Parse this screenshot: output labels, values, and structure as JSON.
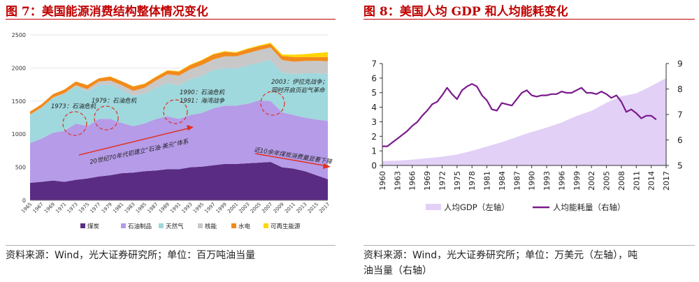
{
  "left": {
    "title": "图 7：美国能源消费结构整体情况变化",
    "source": "资料来源：Wind，光大证券研究所；单位：百万吨油当量",
    "chart_data": {
      "type": "area",
      "stacked": true,
      "title": "",
      "xlabel": "",
      "ylabel": "",
      "xlim": [
        1965,
        2017
      ],
      "ylim": [
        0,
        2500
      ],
      "x_ticks": [
        "1965",
        "1967",
        "1969",
        "1971",
        "1973",
        "1975",
        "1977",
        "1979",
        "1981",
        "1983",
        "1985",
        "1987",
        "1989",
        "1991",
        "1993",
        "1995",
        "1997",
        "1999",
        "2001",
        "2003",
        "2005",
        "2007",
        "2009",
        "2011",
        "2013",
        "2015",
        "2017"
      ],
      "y_ticks": [
        "0",
        "500",
        "1000",
        "1500",
        "2000",
        "2500"
      ],
      "x": [
        1965,
        1967,
        1969,
        1971,
        1973,
        1975,
        1977,
        1979,
        1981,
        1983,
        1985,
        1987,
        1989,
        1991,
        1993,
        1995,
        1997,
        1999,
        2001,
        2003,
        2005,
        2007,
        2009,
        2011,
        2013,
        2015,
        2017
      ],
      "legend_position": "bottom",
      "series": [
        {
          "name": "煤炭",
          "color": "#5b2c83",
          "values": [
            265,
            280,
            300,
            280,
            310,
            330,
            360,
            380,
            410,
            420,
            440,
            450,
            470,
            470,
            500,
            510,
            530,
            550,
            550,
            560,
            570,
            580,
            500,
            480,
            440,
            380,
            320
          ]
        },
        {
          "name": "石油制品",
          "color": "#b59be8",
          "values": [
            600,
            650,
            720,
            770,
            850,
            790,
            870,
            850,
            760,
            700,
            720,
            780,
            800,
            760,
            790,
            810,
            860,
            880,
            880,
            900,
            940,
            920,
            830,
            810,
            810,
            840,
            880
          ]
        },
        {
          "name": "天然气",
          "color": "#9fd8dd",
          "values": [
            430,
            470,
            530,
            560,
            560,
            520,
            510,
            520,
            500,
            460,
            450,
            470,
            500,
            510,
            540,
            560,
            580,
            570,
            560,
            580,
            570,
            620,
            600,
            620,
            670,
            700,
            710
          ]
        },
        {
          "name": "核能",
          "color": "#c8c8c8",
          "values": [
            2,
            3,
            4,
            10,
            20,
            40,
            55,
            60,
            70,
            75,
            90,
            110,
            135,
            145,
            150,
            165,
            160,
            175,
            185,
            185,
            190,
            190,
            190,
            185,
            185,
            190,
            190
          ]
        },
        {
          "name": "水电",
          "color": "#f28a1c",
          "values": [
            45,
            48,
            50,
            55,
            55,
            60,
            48,
            60,
            58,
            65,
            60,
            55,
            55,
            60,
            65,
            70,
            75,
            70,
            55,
            60,
            60,
            55,
            60,
            70,
            60,
            55,
            65
          ]
        },
        {
          "name": "可再生能源",
          "color": "#ffd500",
          "values": [
            0,
            0,
            0,
            1,
            1,
            2,
            2,
            3,
            3,
            4,
            5,
            6,
            7,
            7,
            8,
            8,
            8,
            9,
            9,
            10,
            12,
            18,
            25,
            35,
            45,
            60,
            75
          ]
        }
      ],
      "annotations": [
        {
          "text": "1973：石油危机",
          "x": 1974,
          "y": 1250
        },
        {
          "text": "1979：石油危机",
          "x": 1979,
          "y": 1260
        },
        {
          "text": "1990：石油危机",
          "x": 1990,
          "y": 1270
        },
        {
          "text": "1991：海湾战争",
          "x": 1990,
          "y": 1270
        },
        {
          "text": "2003：伊拉克战争；",
          "x": 2005,
          "y": 1460
        },
        {
          "text": "同时开启页岩气革命",
          "x": 2005,
          "y": 1460
        },
        {
          "text": "20世纪70年代初建立“石油-美元”体系"
        },
        {
          "text": "近10余年煤炭消费量显著下降"
        }
      ]
    }
  },
  "right": {
    "title": "图 8：美国人均 GDP 和人均能耗变化",
    "source_line1": "资料来源：Wind，光大证券研究所；单位：万美元（左轴），吨",
    "source_line2": "油当量（右轴）",
    "chart_data": {
      "type": "line",
      "title": "",
      "xlabel": "",
      "ylabel": "",
      "x_ticks": [
        "1960",
        "1963",
        "1966",
        "1969",
        "1972",
        "1975",
        "1978",
        "1981",
        "1984",
        "1987",
        "1990",
        "1993",
        "1996",
        "1999",
        "2002",
        "2005",
        "2008",
        "2011",
        "2014",
        "2017"
      ],
      "xlim": [
        1960,
        2017
      ],
      "ylim_left": [
        0,
        7
      ],
      "y_ticks_left": [
        "0",
        "1",
        "2",
        "3",
        "4",
        "5",
        "6",
        "7"
      ],
      "ylim_right": [
        5,
        9
      ],
      "y_ticks_right": [
        "5",
        "6",
        "7",
        "8",
        "9"
      ],
      "legend_position": "bottom",
      "series": [
        {
          "name": "人均GDP（左轴）",
          "type": "area",
          "axis": "left",
          "color": "#e2d0f7",
          "x": [
            1960,
            1963,
            1966,
            1969,
            1972,
            1975,
            1978,
            1981,
            1984,
            1987,
            1990,
            1993,
            1996,
            1999,
            2002,
            2005,
            2008,
            2011,
            2014,
            2017
          ],
          "values": [
            0.3,
            0.33,
            0.4,
            0.5,
            0.6,
            0.75,
            1.0,
            1.3,
            1.6,
            1.95,
            2.3,
            2.6,
            2.95,
            3.4,
            3.75,
            4.3,
            4.75,
            4.95,
            5.45,
            6.0
          ]
        },
        {
          "name": "人均能耗量（右轴）",
          "type": "line",
          "axis": "right",
          "color": "#7a1a8c",
          "x": [
            1960,
            1961,
            1962,
            1963,
            1964,
            1965,
            1966,
            1967,
            1968,
            1969,
            1970,
            1971,
            1972,
            1973,
            1974,
            1975,
            1976,
            1977,
            1978,
            1979,
            1980,
            1981,
            1982,
            1983,
            1984,
            1985,
            1986,
            1987,
            1988,
            1989,
            1990,
            1991,
            1992,
            1993,
            1994,
            1995,
            1996,
            1997,
            1998,
            1999,
            2000,
            2001,
            2002,
            2003,
            2004,
            2005,
            2006,
            2007,
            2008,
            2009,
            2010,
            2011,
            2012,
            2013,
            2014,
            2015
          ],
          "values": [
            5.75,
            5.75,
            5.9,
            6.05,
            6.2,
            6.35,
            6.55,
            6.7,
            6.95,
            7.15,
            7.4,
            7.5,
            7.75,
            8.05,
            7.8,
            7.6,
            7.95,
            8.1,
            8.2,
            8.1,
            7.75,
            7.55,
            7.2,
            7.15,
            7.45,
            7.4,
            7.35,
            7.6,
            7.85,
            7.95,
            7.75,
            7.7,
            7.75,
            7.75,
            7.8,
            7.8,
            7.9,
            7.85,
            7.85,
            7.95,
            8.05,
            7.85,
            7.85,
            7.8,
            7.9,
            7.8,
            7.65,
            7.75,
            7.5,
            7.1,
            7.2,
            7.05,
            6.85,
            6.95,
            6.95,
            6.8
          ]
        }
      ]
    }
  }
}
